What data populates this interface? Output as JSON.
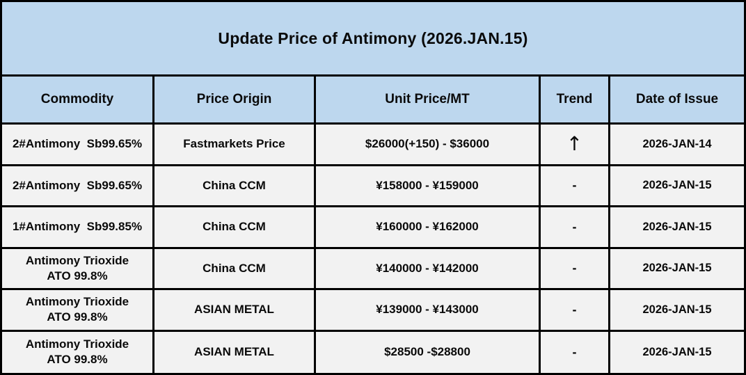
{
  "title": "Update Price of Antimony (2026.JAN.15)",
  "colors": {
    "band_bg": "#BDD7EE",
    "row_bg": "#F2F2F2",
    "border": "#000000",
    "text": "#0A0A0A"
  },
  "table": {
    "columns": [
      "Commodity",
      "Price Origin",
      "Unit Price/MT",
      "Trend",
      "Date of Issue"
    ],
    "rows": [
      {
        "commodity": "2#Antimony  Sb99.65%",
        "origin": "Fastmarkets Price",
        "price": "$26000(+150) - $36000",
        "trend": "↑",
        "date": "2026-JAN-14"
      },
      {
        "commodity": "2#Antimony  Sb99.65%",
        "origin": "China CCM",
        "price": "¥158000 - ¥159000",
        "trend": "-",
        "date": "2026-JAN-15"
      },
      {
        "commodity": "1#Antimony  Sb99.85%",
        "origin": "China CCM",
        "price": "¥160000 - ¥162000",
        "trend": "-",
        "date": "2026-JAN-15"
      },
      {
        "commodity": "Antimony Trioxide\nATO 99.8%",
        "origin": "China CCM",
        "price": "¥140000 - ¥142000",
        "trend": "-",
        "date": "2026-JAN-15"
      },
      {
        "commodity": "Antimony Trioxide\nATO 99.8%",
        "origin": "ASIAN METAL",
        "price": "¥139000 - ¥143000",
        "trend": "-",
        "date": "2026-JAN-15"
      },
      {
        "commodity": "Antimony Trioxide\nATO 99.8%",
        "origin": "ASIAN METAL",
        "price": "$28500 -$28800",
        "trend": "-",
        "date": "2026-JAN-15"
      }
    ]
  }
}
